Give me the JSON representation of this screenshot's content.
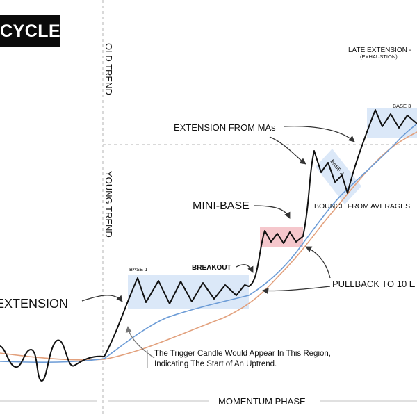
{
  "title": "CYCLE",
  "phases": {
    "old_trend": "OLD TREND",
    "young_trend": "YOUNG TREND",
    "momentum_phase": "MOMENTUM PHASE"
  },
  "labels": {
    "late_extension": "LATE EXTENSION -",
    "exhaustion": "(EXHAUSTION)",
    "base_3": "BASE 3",
    "extension_from_mas": "EXTENSION FROM MAs",
    "base_2": "BASE 2",
    "mini_base": "MINI-BASE",
    "bounce_from_averages": "BOUNCE FROM AVERAGES",
    "base_1": "BASE 1",
    "breakout": "BREAKOUT",
    "pullback": "PULLBACK TO 10 E",
    "extension": "EXTENSION",
    "trigger_line1": "The Trigger Candle Would Appear In This Region,",
    "trigger_line2": "Indicating The Start of An Uptrend."
  },
  "colors": {
    "price": "#111111",
    "fast_ma": "#6b9bd6",
    "slow_ma": "#e2a07c",
    "base_highlight": "#dbe8f8",
    "mini_base_highlight": "#f5c7cc",
    "arrow": "#333333",
    "guide": "#a8a8a8",
    "title_bg": "#0b0b0b"
  }
}
